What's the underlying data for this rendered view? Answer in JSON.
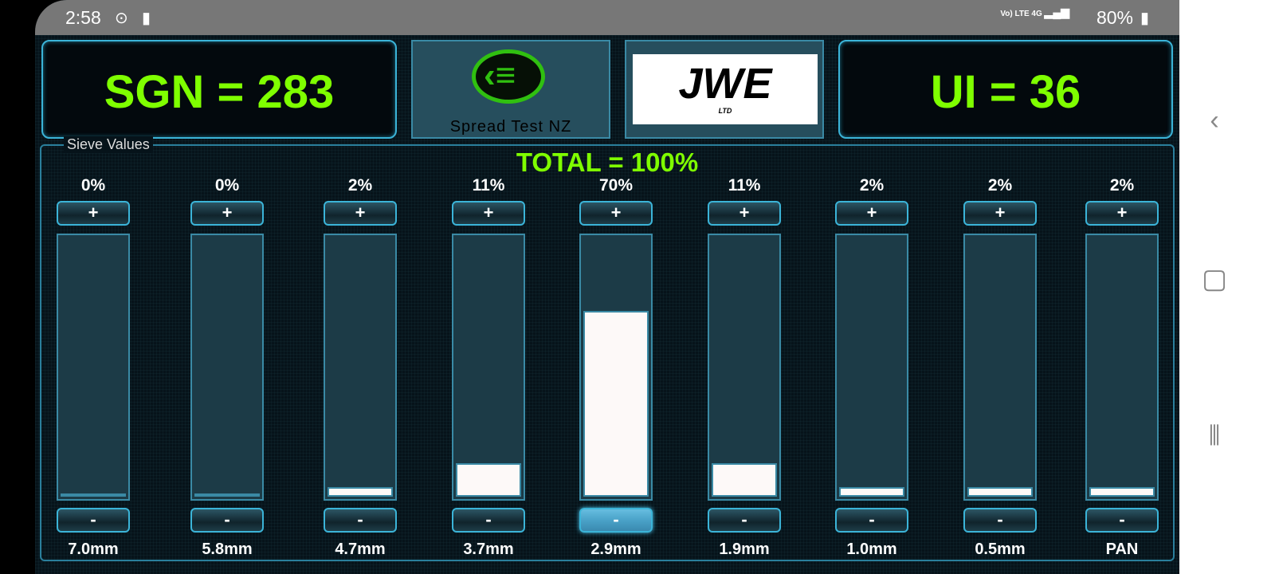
{
  "status_bar": {
    "time": "2:58",
    "network": "Vo) LTE",
    "network_type": "4G",
    "battery": "80%"
  },
  "header": {
    "sgn_label": "SGN = 283",
    "ui_label": "UI = 36",
    "app_logo_text": "Spread Test NZ",
    "partner_logo_text": "JWE",
    "partner_logo_sub": "LTD"
  },
  "sieve": {
    "title": "Sieve Values",
    "total": "TOTAL = 100%",
    "plus_label": "+",
    "minus_label": "-",
    "columns": [
      {
        "size": "7.0mm",
        "percent_label": "0%",
        "percent": 0
      },
      {
        "size": "5.8mm",
        "percent_label": "0%",
        "percent": 0
      },
      {
        "size": "4.7mm",
        "percent_label": "2%",
        "percent": 2
      },
      {
        "size": "3.7mm",
        "percent_label": "11%",
        "percent": 11
      },
      {
        "size": "2.9mm",
        "percent_label": "70%",
        "percent": 70,
        "selected": true
      },
      {
        "size": "1.9mm",
        "percent_label": "11%",
        "percent": 11
      },
      {
        "size": "1.0mm",
        "percent_label": "2%",
        "percent": 2
      },
      {
        "size": "0.5mm",
        "percent_label": "2%",
        "percent": 2
      },
      {
        "size": "PAN",
        "percent_label": "2%",
        "percent": 2
      }
    ]
  },
  "colors": {
    "accent_green": "#7fff00",
    "border_cyan": "#3bb4d8",
    "fill": "#fdf9f8"
  }
}
